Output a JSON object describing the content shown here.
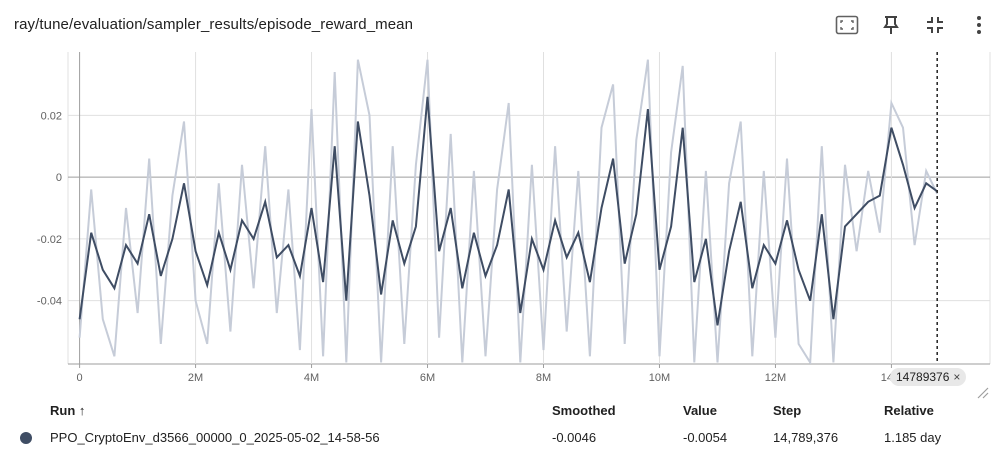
{
  "header": {
    "title": "ray/tune/evaluation/sampler_results/episode_reward_mean"
  },
  "toolbar": {
    "icons": [
      "fit-domain-icon",
      "pin-icon",
      "collapse-icon",
      "more-vert-icon"
    ]
  },
  "colors": {
    "series_smoothed": "#3f4d64",
    "series_raw": "#c6ccd8",
    "grid": "#e0e0e0",
    "zero_line": "#9e9e9e",
    "text_muted": "#616161"
  },
  "chart_data": {
    "type": "line",
    "title": "ray/tune/evaluation/sampler_results/episode_reward_mean",
    "xlabel": "",
    "ylabel": "",
    "xlim": [
      -200000,
      15700000
    ],
    "ylim": [
      -0.0605,
      0.0405
    ],
    "y_ticks": [
      0.02,
      0,
      -0.02,
      -0.04
    ],
    "y_tick_labels": [
      "0.02",
      "0",
      "-0.02",
      "-0.04"
    ],
    "x_ticks": [
      0,
      2000000,
      4000000,
      6000000,
      8000000,
      10000000,
      12000000,
      14000000
    ],
    "x_tick_labels": [
      "0",
      "2M",
      "4M",
      "6M",
      "8M",
      "10M",
      "12M",
      "14M"
    ],
    "grid": true,
    "cursor_step": 14789376,
    "series": [
      {
        "name": "PPO_CryptoEnv_d3566_00000_0_2025-05-02_14-58-56",
        "x": [
          0,
          200000,
          400000,
          600000,
          800000,
          1000000,
          1200000,
          1400000,
          1600000,
          1800000,
          2000000,
          2200000,
          2400000,
          2600000,
          2800000,
          3000000,
          3200000,
          3400000,
          3600000,
          3800000,
          4000000,
          4200000,
          4400000,
          4600000,
          4800000,
          5000000,
          5200000,
          5400000,
          5600000,
          5800000,
          6000000,
          6200000,
          6400000,
          6600000,
          6800000,
          7000000,
          7200000,
          7400000,
          7600000,
          7800000,
          8000000,
          8200000,
          8400000,
          8600000,
          8800000,
          9000000,
          9200000,
          9400000,
          9600000,
          9800000,
          10000000,
          10200000,
          10400000,
          10600000,
          10800000,
          11000000,
          11200000,
          11400000,
          11600000,
          11800000,
          12000000,
          12200000,
          12400000,
          12600000,
          12800000,
          13000000,
          13200000,
          13400000,
          13600000,
          13800000,
          14000000,
          14200000,
          14400000,
          14600000,
          14789376
        ],
        "smoothed": [
          -0.046,
          -0.018,
          -0.03,
          -0.036,
          -0.022,
          -0.028,
          -0.012,
          -0.032,
          -0.02,
          -0.002,
          -0.024,
          -0.035,
          -0.018,
          -0.03,
          -0.014,
          -0.02,
          -0.008,
          -0.026,
          -0.022,
          -0.032,
          -0.01,
          -0.034,
          0.01,
          -0.04,
          0.018,
          -0.006,
          -0.038,
          -0.014,
          -0.028,
          -0.016,
          0.026,
          -0.024,
          -0.01,
          -0.036,
          -0.018,
          -0.032,
          -0.022,
          -0.004,
          -0.044,
          -0.02,
          -0.03,
          -0.014,
          -0.026,
          -0.018,
          -0.034,
          -0.01,
          0.006,
          -0.028,
          -0.012,
          0.022,
          -0.03,
          -0.016,
          0.016,
          -0.034,
          -0.02,
          -0.048,
          -0.024,
          -0.008,
          -0.036,
          -0.022,
          -0.028,
          -0.014,
          -0.03,
          -0.04,
          -0.012,
          -0.046,
          -0.016,
          -0.012,
          -0.008,
          -0.006,
          0.016,
          0.004,
          -0.01,
          -0.002,
          -0.0046
        ],
        "values": [
          -0.052,
          -0.004,
          -0.046,
          -0.058,
          -0.01,
          -0.044,
          0.006,
          -0.054,
          -0.006,
          0.018,
          -0.04,
          -0.054,
          -0.002,
          -0.05,
          0.004,
          -0.036,
          0.01,
          -0.044,
          -0.004,
          -0.056,
          0.022,
          -0.058,
          0.034,
          -0.06,
          0.038,
          0.02,
          -0.06,
          0.01,
          -0.054,
          0.004,
          0.038,
          -0.052,
          0.014,
          -0.06,
          0.002,
          -0.058,
          -0.004,
          0.024,
          -0.06,
          0.004,
          -0.056,
          0.01,
          -0.05,
          0.002,
          -0.058,
          0.016,
          0.03,
          -0.054,
          0.012,
          0.038,
          -0.058,
          0.008,
          0.036,
          -0.06,
          0.002,
          -0.06,
          -0.002,
          0.018,
          -0.058,
          0.002,
          -0.052,
          0.006,
          -0.054,
          -0.06,
          0.01,
          -0.06,
          0.004,
          -0.024,
          0.002,
          -0.018,
          0.024,
          0.016,
          -0.022,
          0.002,
          -0.0054
        ]
      }
    ]
  },
  "cursor_badge": {
    "label": "14789376",
    "close": "×"
  },
  "table": {
    "headers": {
      "run": "Run ↑",
      "smoothed": "Smoothed",
      "value": "Value",
      "step": "Step",
      "relative": "Relative"
    },
    "rows": [
      {
        "run": "PPO_CryptoEnv_d3566_00000_0_2025-05-02_14-58-56",
        "smoothed": "-0.0046",
        "value": "-0.0054",
        "step": "14,789,376",
        "relative": "1.185 day"
      }
    ]
  }
}
